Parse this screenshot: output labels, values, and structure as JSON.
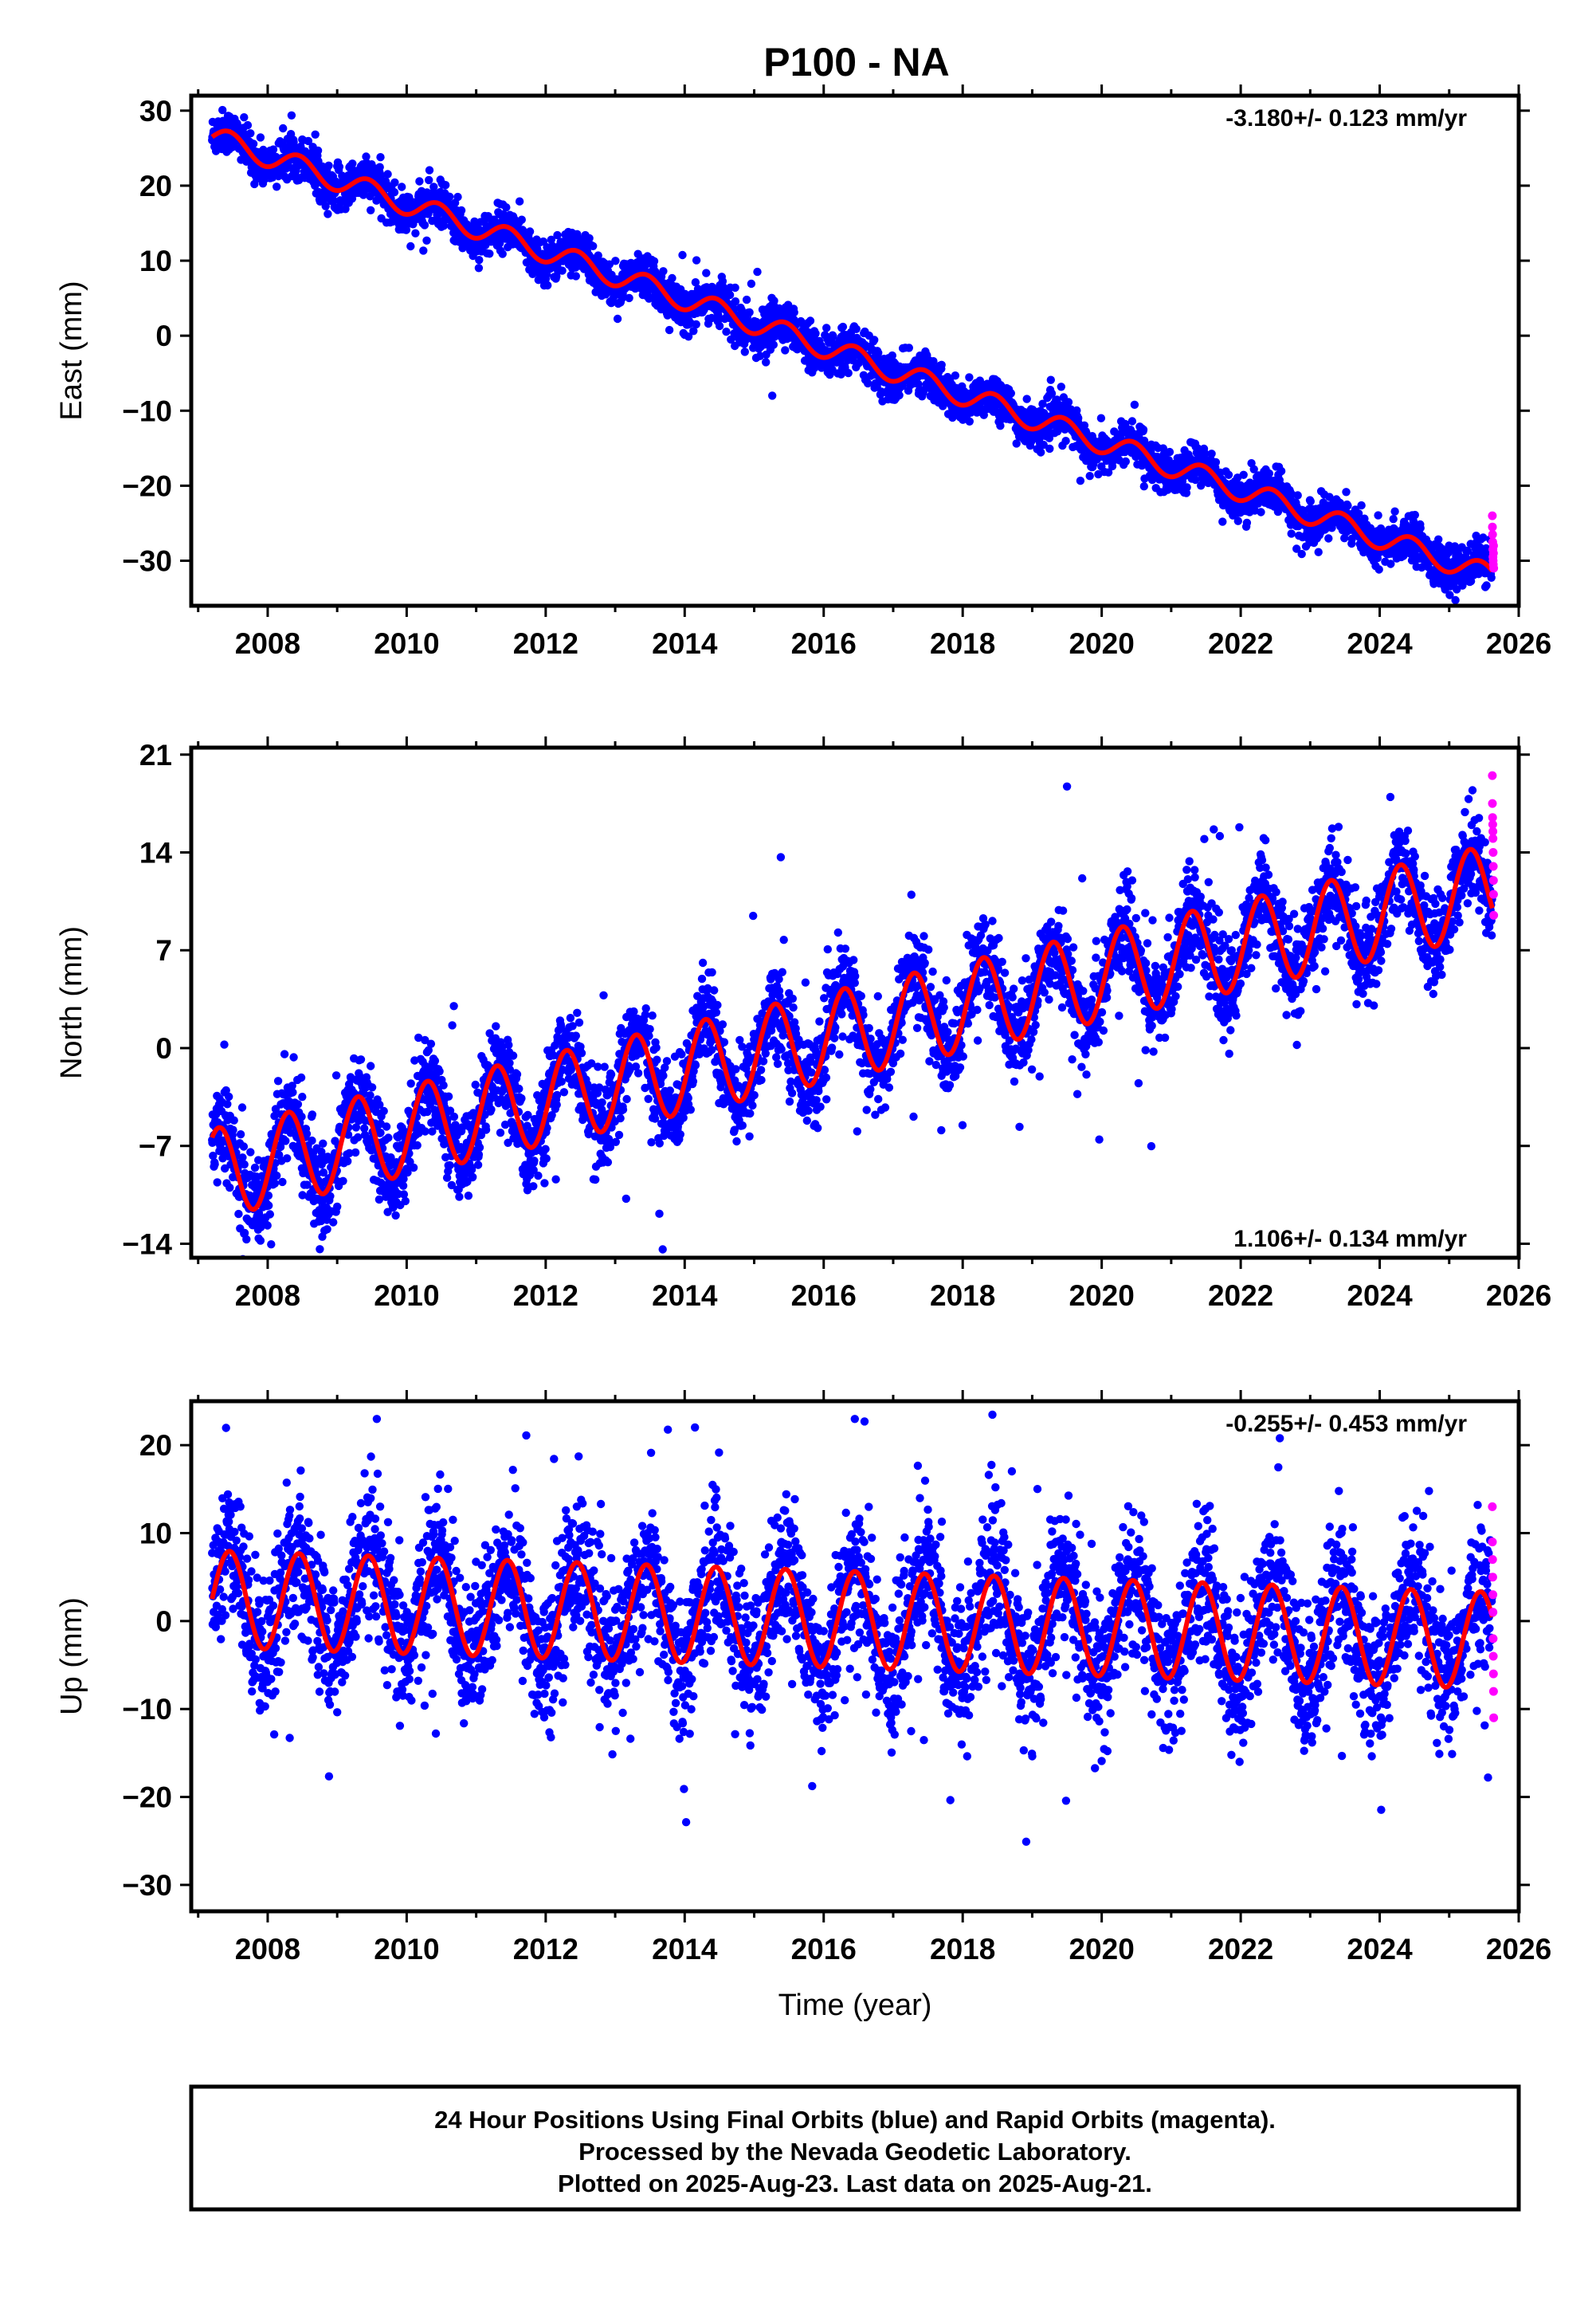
{
  "chart_data": [
    {
      "type": "scatter",
      "title": "P100 - NA",
      "ylabel": "East (mm)",
      "xlabel": "",
      "xlim": [
        2006.9,
        2026.0
      ],
      "ylim": [
        -36,
        32
      ],
      "xticks": [
        2008,
        2010,
        2012,
        2014,
        2016,
        2018,
        2020,
        2022,
        2024,
        2026
      ],
      "yticks": [
        30,
        20,
        10,
        0,
        -10,
        -20,
        -30
      ],
      "rate_text": "-3.180+/- 0.123 mm/yr",
      "rate_position": "top-right",
      "model": {
        "start": 2007.2,
        "end": 2025.62,
        "y0": 26.5,
        "rate": -3.18,
        "amp": 1.5,
        "phase": 2007.45,
        "noise": 1.4,
        "outlier_rate": 0.004,
        "outlier_size": 5
      },
      "series": [
        {
          "name": "Final Orbits (blue)",
          "color": "#0000ff",
          "kind": "points"
        },
        {
          "name": "Rapid Orbits (magenta)",
          "color": "#ff00ff",
          "kind": "points",
          "start": 2025.62,
          "end": 2025.64,
          "values": [
            -24,
            -25.5,
            -26.5,
            -27.5,
            -28.5,
            -29.5,
            -30,
            -30.5,
            -29,
            -28,
            -31
          ]
        },
        {
          "name": "model",
          "color": "#ff0000",
          "kind": "line"
        }
      ]
    },
    {
      "type": "scatter",
      "ylabel": "North (mm)",
      "xlabel": "",
      "xlim": [
        2006.9,
        2026.0
      ],
      "ylim": [
        -15,
        21.5
      ],
      "xticks": [
        2008,
        2010,
        2012,
        2014,
        2016,
        2018,
        2020,
        2022,
        2024,
        2026
      ],
      "yticks": [
        21,
        14,
        7,
        0,
        -7,
        -14
      ],
      "rate_text": "1.106+/- 0.134 mm/yr",
      "rate_position": "bottom-right",
      "model": {
        "start": 2007.2,
        "end": 2025.62,
        "y0": -9,
        "rate": 1.106,
        "amp": 3.2,
        "phase": 2007.3,
        "noise": 1.6,
        "outlier_rate": 0.012,
        "outlier_size": 7
      },
      "series": [
        {
          "name": "Final Orbits (blue)",
          "color": "#0000ff",
          "kind": "points"
        },
        {
          "name": "Rapid Orbits (magenta)",
          "color": "#ff00ff",
          "kind": "points",
          "start": 2025.62,
          "end": 2025.64,
          "values": [
            19.5,
            17.5,
            16.5,
            16,
            15.5,
            15,
            14,
            13,
            12,
            11,
            9.5
          ]
        },
        {
          "name": "model",
          "color": "#ff0000",
          "kind": "line"
        }
      ]
    },
    {
      "type": "scatter",
      "ylabel": "Up (mm)",
      "xlabel": "Time (year)",
      "xlim": [
        2006.9,
        2026.0
      ],
      "ylim": [
        -33,
        25
      ],
      "xticks": [
        2008,
        2010,
        2012,
        2014,
        2016,
        2018,
        2020,
        2022,
        2024,
        2026
      ],
      "yticks": [
        20,
        10,
        0,
        -10,
        -20,
        -30
      ],
      "rate_text": "-0.255+/- 0.453 mm/yr",
      "rate_position": "top-right",
      "model": {
        "start": 2007.2,
        "end": 2025.62,
        "y0": 2.5,
        "rate": -0.255,
        "amp": 5.5,
        "phase": 2007.45,
        "noise": 4.0,
        "outlier_rate": 0.015,
        "outlier_size": 12
      },
      "series": [
        {
          "name": "Final Orbits (blue)",
          "color": "#0000ff",
          "kind": "points"
        },
        {
          "name": "Rapid Orbits (magenta)",
          "color": "#ff00ff",
          "kind": "points",
          "start": 2025.62,
          "end": 2025.64,
          "values": [
            13,
            9,
            7,
            5,
            3,
            1,
            -2,
            -4,
            -6,
            -8,
            -11
          ]
        },
        {
          "name": "model",
          "color": "#ff0000",
          "kind": "line"
        }
      ]
    }
  ],
  "footer": {
    "lines": [
      "24 Hour Positions Using Final Orbits (blue) and Rapid Orbits (magenta).",
      "Processed by the Nevada Geodetic Laboratory.",
      "Plotted on 2025-Aug-23. Last data on 2025-Aug-21."
    ]
  }
}
